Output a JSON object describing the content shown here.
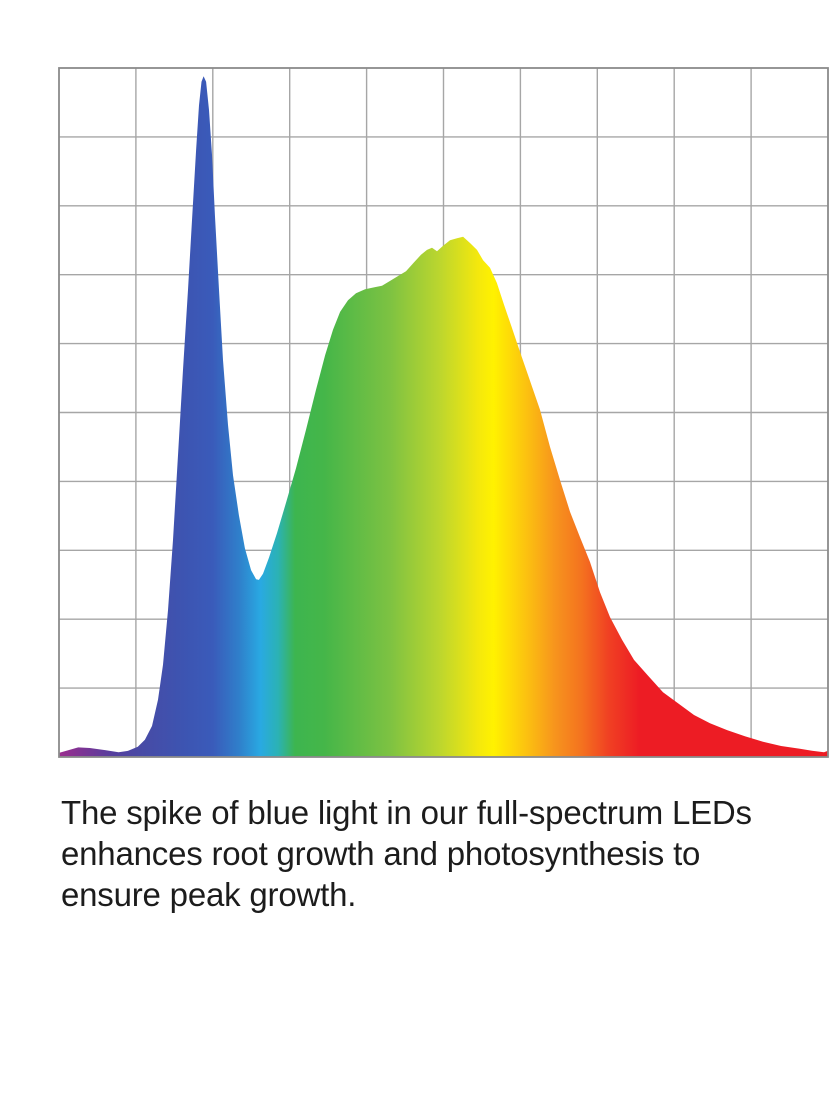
{
  "caption": {
    "lines": [
      "The spike of blue light in our full-spectrum LEDs",
      "enhances root growth and photosynthesis to",
      "ensure peak growth."
    ],
    "text_color": "#1c1c1c"
  },
  "chart_data": {
    "type": "area",
    "title": "",
    "xlabel": "",
    "ylabel": "",
    "note": "Axes are unlabeled; x interpreted as wavelength 380-780 nm implied by the rainbow gradient, y as relative spectral intensity 0-1.",
    "x_range": [
      380,
      780
    ],
    "y_range": [
      0,
      1
    ],
    "grid": {
      "rows": 10,
      "cols": 10,
      "line_color": "#a6a6a6",
      "border_color": "#8b8b8b",
      "background": "#ffffff"
    },
    "legend_position": "none",
    "series": [
      {
        "name": "full-spectrum-led-spd",
        "points": [
          [
            380,
            0.006
          ],
          [
            385,
            0.01
          ],
          [
            390,
            0.014
          ],
          [
            396,
            0.013
          ],
          [
            404,
            0.01
          ],
          [
            411,
            0.007
          ],
          [
            416,
            0.009
          ],
          [
            421,
            0.015
          ],
          [
            424.7,
            0.025
          ],
          [
            428.4,
            0.045
          ],
          [
            431.5,
            0.083
          ],
          [
            434.1,
            0.134
          ],
          [
            436.7,
            0.213
          ],
          [
            439.3,
            0.315
          ],
          [
            441.9,
            0.438
          ],
          [
            444.5,
            0.562
          ],
          [
            447.1,
            0.678
          ],
          [
            449.2,
            0.779
          ],
          [
            451.3,
            0.881
          ],
          [
            452.8,
            0.946
          ],
          [
            454.1,
            0.98
          ],
          [
            455.2,
            0.988
          ],
          [
            456.5,
            0.98
          ],
          [
            458.0,
            0.939
          ],
          [
            459.6,
            0.874
          ],
          [
            461.1,
            0.787
          ],
          [
            463.2,
            0.678
          ],
          [
            465.3,
            0.576
          ],
          [
            467.9,
            0.482
          ],
          [
            470.5,
            0.409
          ],
          [
            473.6,
            0.351
          ],
          [
            476.7,
            0.303
          ],
          [
            479.9,
            0.271
          ],
          [
            482.5,
            0.258
          ],
          [
            484.0,
            0.257
          ],
          [
            486.1,
            0.266
          ],
          [
            489.2,
            0.289
          ],
          [
            493.4,
            0.325
          ],
          [
            498.1,
            0.369
          ],
          [
            503.3,
            0.419
          ],
          [
            508.5,
            0.475
          ],
          [
            513.7,
            0.533
          ],
          [
            518.4,
            0.583
          ],
          [
            522.5,
            0.62
          ],
          [
            526.2,
            0.646
          ],
          [
            530.3,
            0.663
          ],
          [
            534.5,
            0.673
          ],
          [
            539.2,
            0.679
          ],
          [
            544.4,
            0.682
          ],
          [
            548.0,
            0.684
          ],
          [
            552.2,
            0.691
          ],
          [
            556.3,
            0.698
          ],
          [
            560.5,
            0.705
          ],
          [
            564.7,
            0.718
          ],
          [
            568.3,
            0.729
          ],
          [
            571.4,
            0.736
          ],
          [
            574.0,
            0.739
          ],
          [
            576.6,
            0.734
          ],
          [
            579.8,
            0.742
          ],
          [
            583.4,
            0.75
          ],
          [
            587.0,
            0.753
          ],
          [
            590.2,
            0.755
          ],
          [
            593.8,
            0.746
          ],
          [
            597.4,
            0.736
          ],
          [
            600.6,
            0.721
          ],
          [
            604.2,
            0.71
          ],
          [
            607.8,
            0.688
          ],
          [
            611.5,
            0.656
          ],
          [
            615.6,
            0.623
          ],
          [
            619.8,
            0.588
          ],
          [
            625.0,
            0.546
          ],
          [
            630.2,
            0.504
          ],
          [
            635.4,
            0.45
          ],
          [
            640.6,
            0.402
          ],
          [
            645.8,
            0.356
          ],
          [
            651.0,
            0.319
          ],
          [
            656.2,
            0.283
          ],
          [
            661.4,
            0.239
          ],
          [
            666.6,
            0.203
          ],
          [
            672.9,
            0.17
          ],
          [
            679.1,
            0.141
          ],
          [
            686.4,
            0.118
          ],
          [
            694.2,
            0.094
          ],
          [
            702.0,
            0.078
          ],
          [
            710.3,
            0.061
          ],
          [
            718.6,
            0.049
          ],
          [
            727.5,
            0.039
          ],
          [
            736.8,
            0.03
          ],
          [
            746.2,
            0.022
          ],
          [
            755.6,
            0.016
          ],
          [
            765.4,
            0.012
          ],
          [
            771.7,
            0.009
          ],
          [
            777.9,
            0.007
          ],
          [
            780,
            0.009
          ]
        ]
      }
    ],
    "gradient_stops": [
      {
        "offset": 0.0,
        "color": "#9b2d8f"
      },
      {
        "offset": 0.03,
        "color": "#7c3494"
      },
      {
        "offset": 0.07,
        "color": "#553f9e"
      },
      {
        "offset": 0.11,
        "color": "#474ba6"
      },
      {
        "offset": 0.16,
        "color": "#3d54b1"
      },
      {
        "offset": 0.2,
        "color": "#3a5bba"
      },
      {
        "offset": 0.235,
        "color": "#2f80cb"
      },
      {
        "offset": 0.262,
        "color": "#29a9e2"
      },
      {
        "offset": 0.285,
        "color": "#2bb2b4"
      },
      {
        "offset": 0.307,
        "color": "#3db54f"
      },
      {
        "offset": 0.345,
        "color": "#45b649"
      },
      {
        "offset": 0.43,
        "color": "#7dc242"
      },
      {
        "offset": 0.495,
        "color": "#bcd62e"
      },
      {
        "offset": 0.545,
        "color": "#f4e80d"
      },
      {
        "offset": 0.565,
        "color": "#fff200"
      },
      {
        "offset": 0.605,
        "color": "#fcc50f"
      },
      {
        "offset": 0.645,
        "color": "#f7941d"
      },
      {
        "offset": 0.68,
        "color": "#f4721f"
      },
      {
        "offset": 0.715,
        "color": "#f04023"
      },
      {
        "offset": 0.755,
        "color": "#ed1c24"
      },
      {
        "offset": 1.0,
        "color": "#ed1c24"
      }
    ]
  }
}
